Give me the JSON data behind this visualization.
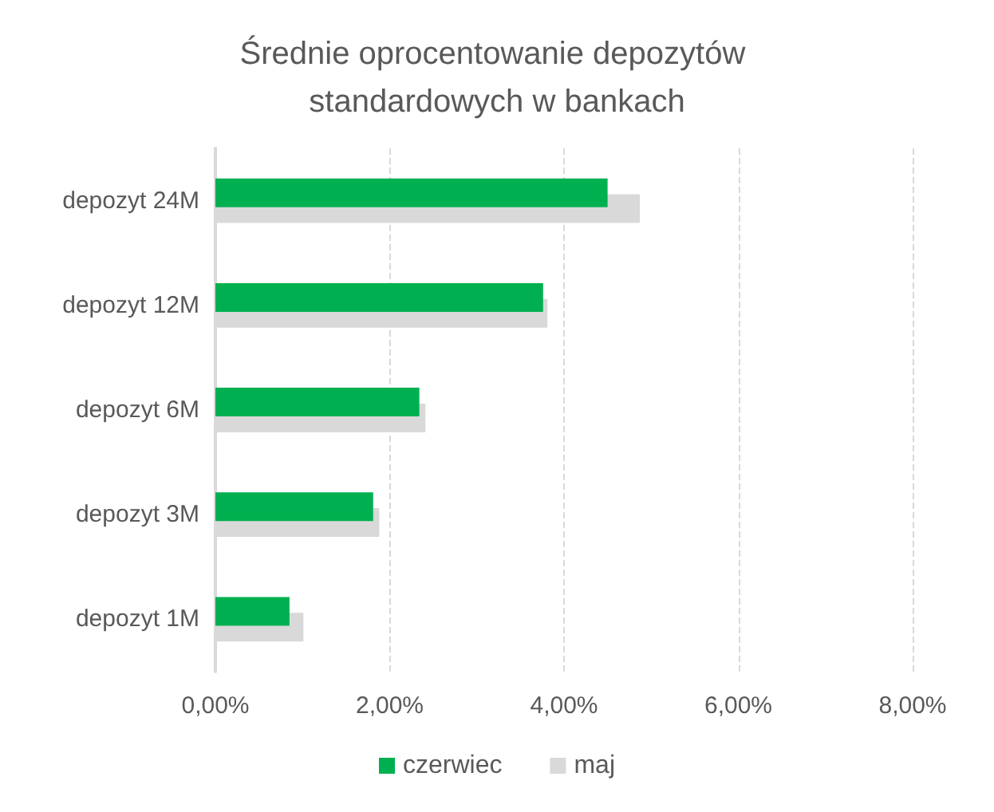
{
  "chart_data": {
    "type": "bar",
    "orientation": "horizontal",
    "title": "Średnie oprocentowanie depozytów standardowych w bankach",
    "categories": [
      "depozyt 24M",
      "depozyt 12M",
      "depozyt 6M",
      "depozyt 3M",
      "depozyt 1M"
    ],
    "series": [
      {
        "name": "czerwiec",
        "color": "#00b050",
        "values": [
          4.5,
          3.76,
          2.34,
          1.81,
          0.85
        ]
      },
      {
        "name": "maj",
        "color": "#d9d9d9",
        "values": [
          4.87,
          3.81,
          2.41,
          1.88,
          1.01
        ]
      }
    ],
    "xlim": [
      0,
      8
    ],
    "xticks": [
      {
        "value": 0,
        "label": "0,00%"
      },
      {
        "value": 2,
        "label": "2,00%"
      },
      {
        "value": 4,
        "label": "4,00%"
      },
      {
        "value": 6,
        "label": "6,00%"
      },
      {
        "value": 8,
        "label": "8,00%"
      }
    ],
    "grid": "x",
    "legend": "bottom"
  }
}
